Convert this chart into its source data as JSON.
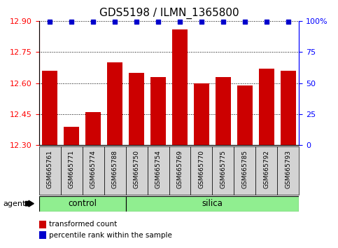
{
  "title": "GDS5198 / ILMN_1365800",
  "samples": [
    "GSM665761",
    "GSM665771",
    "GSM665774",
    "GSM665788",
    "GSM665750",
    "GSM665754",
    "GSM665769",
    "GSM665770",
    "GSM665775",
    "GSM665785",
    "GSM665792",
    "GSM665793"
  ],
  "bar_values": [
    12.66,
    12.39,
    12.46,
    12.7,
    12.65,
    12.63,
    12.86,
    12.6,
    12.63,
    12.59,
    12.67,
    12.66
  ],
  "percentile_values": [
    100,
    100,
    100,
    100,
    100,
    100,
    100,
    100,
    100,
    100,
    100,
    100
  ],
  "bar_color": "#cc0000",
  "percentile_color": "#0000cc",
  "ylim_left": [
    12.3,
    12.9
  ],
  "ylim_right": [
    0,
    100
  ],
  "yticks_left": [
    12.3,
    12.45,
    12.6,
    12.75,
    12.9
  ],
  "yticks_right": [
    0,
    25,
    50,
    75,
    100
  ],
  "control_samples": 4,
  "silica_samples": 8,
  "control_label": "control",
  "silica_label": "silica",
  "agent_label": "agent",
  "legend_bar_label": "transformed count",
  "legend_dot_label": "percentile rank within the sample",
  "background_color": "#ffffff",
  "group_bg_color": "#90ee90",
  "tick_label_bg": "#d3d3d3",
  "title_fontsize": 11,
  "tick_fontsize": 8,
  "label_fontsize": 6.5,
  "group_fontsize": 8.5,
  "legend_fontsize": 7.5,
  "agent_fontsize": 8
}
